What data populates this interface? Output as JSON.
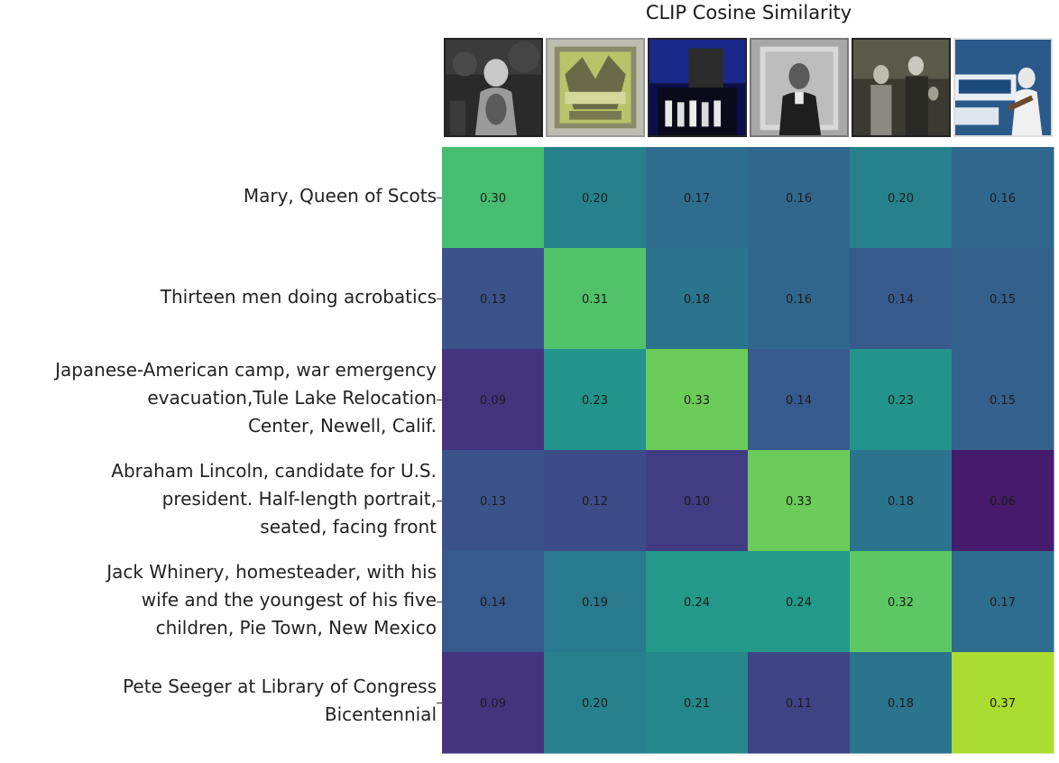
{
  "chart_data": {
    "type": "heatmap",
    "title": "CLIP Cosine Similarity",
    "rows": [
      [
        "Mary, Queen of Scots"
      ],
      [
        "Thirteen men doing acrobatics"
      ],
      [
        "Japanese-American camp, war emergency",
        "evacuation,Tule Lake Relocation",
        "Center, Newell, Calif."
      ],
      [
        "Abraham Lincoln, candidate for U.S.",
        "president. Half-length portrait,",
        "seated, facing front"
      ],
      [
        "Jack Whinery, homesteader, with his",
        "wife and the youngest of his five",
        "children, Pie Town, New Mexico"
      ],
      [
        "Pete Seeger at Library of Congress",
        "Bicentennial"
      ]
    ],
    "values": [
      [
        0.3,
        0.2,
        0.17,
        0.16,
        0.2,
        0.16
      ],
      [
        0.13,
        0.31,
        0.18,
        0.16,
        0.14,
        0.15
      ],
      [
        0.09,
        0.23,
        0.33,
        0.14,
        0.23,
        0.15
      ],
      [
        0.13,
        0.12,
        0.1,
        0.33,
        0.18,
        0.06
      ],
      [
        0.14,
        0.19,
        0.24,
        0.24,
        0.32,
        0.17
      ],
      [
        0.09,
        0.2,
        0.21,
        0.11,
        0.18,
        0.37
      ]
    ],
    "value_format": "0.00",
    "colormap": "viridis",
    "vrange": [
      0.06,
      0.37
    ],
    "column_headers": "image thumbnails"
  }
}
